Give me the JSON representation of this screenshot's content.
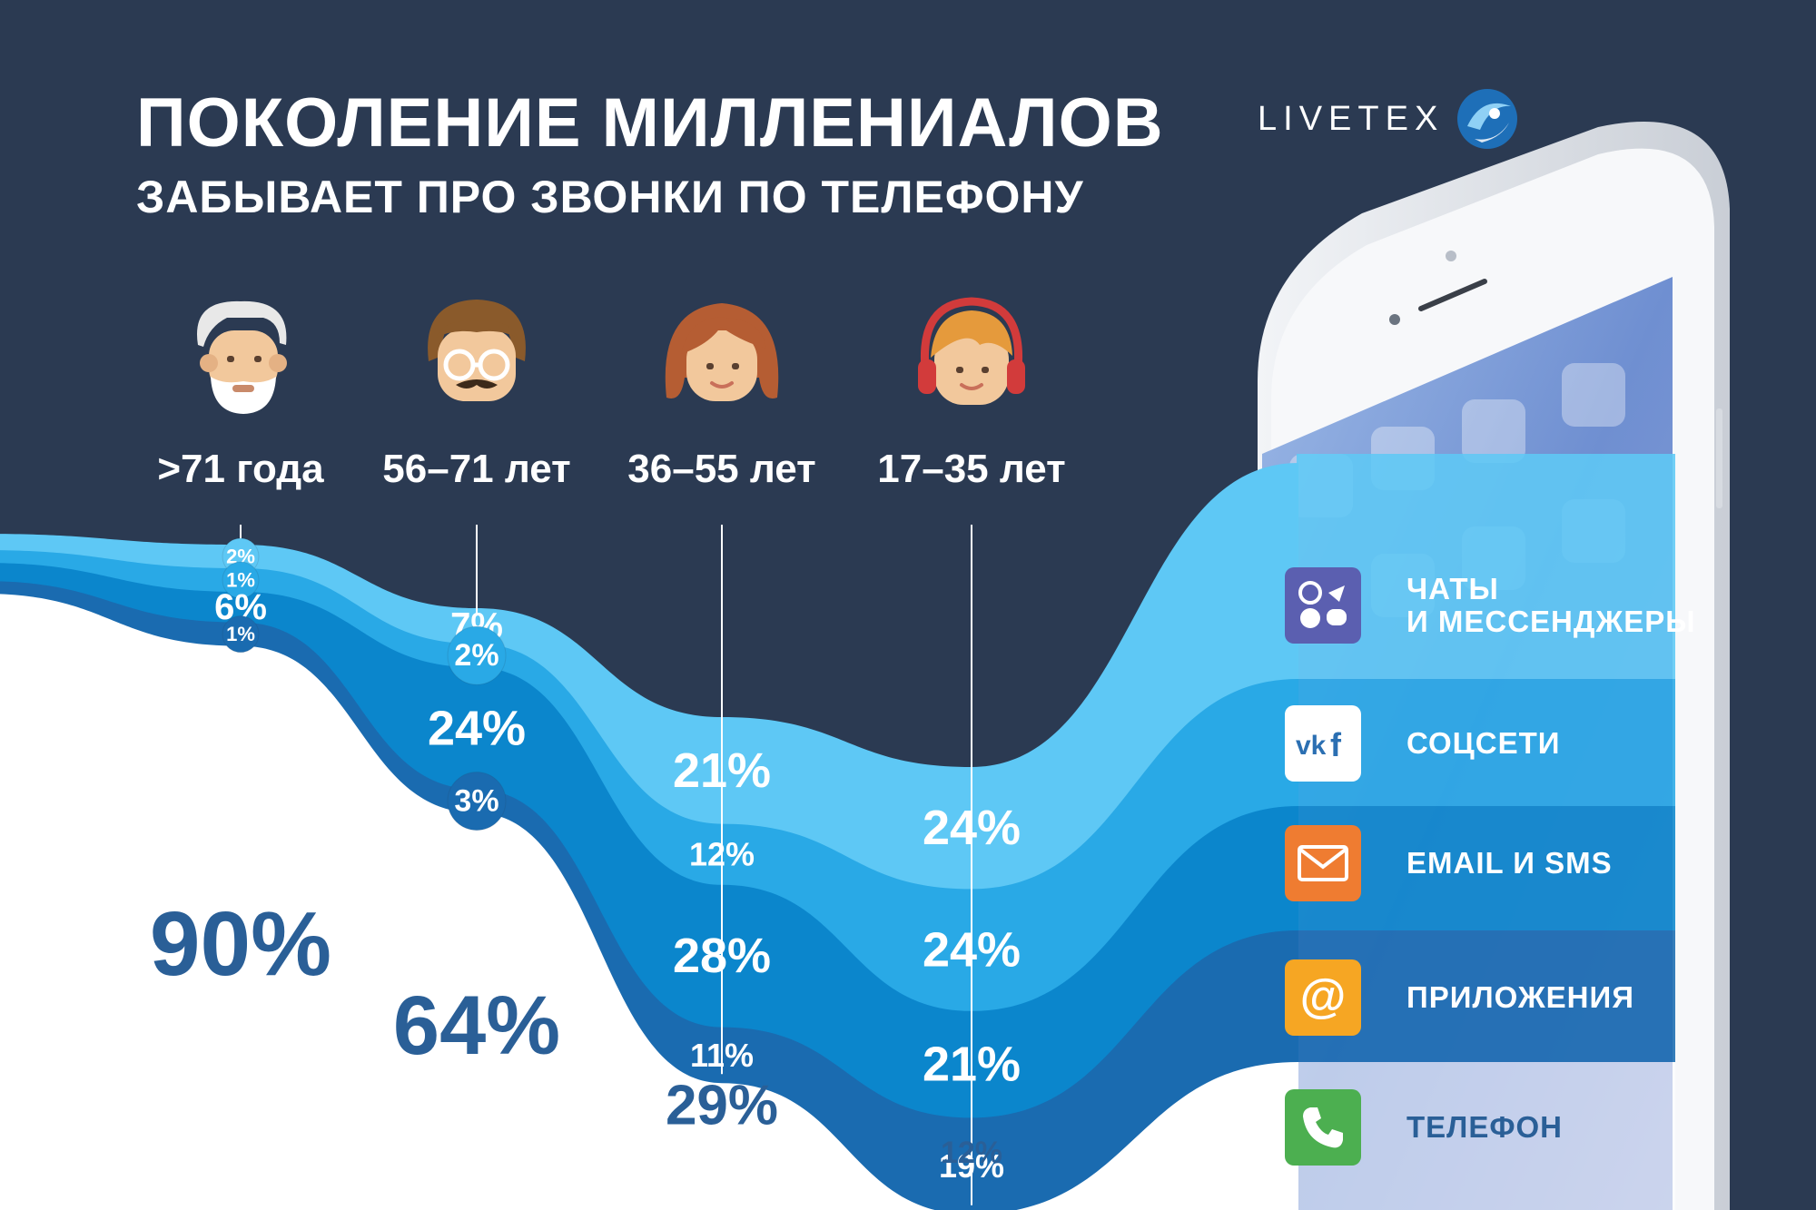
{
  "header": {
    "title": "ПОКОЛЕНИЕ МИЛЛЕНИАЛОВ",
    "subtitle": "ЗАБЫВАЕТ ПРО ЗВОНКИ ПО ТЕЛЕФОНУ"
  },
  "logo": {
    "text": "LIVETEX"
  },
  "age_groups": [
    {
      "label": ">71 года",
      "avatar": "elderly-man-avatar"
    },
    {
      "label": "56–71 лет",
      "avatar": "middle-aged-man-with-glasses-avatar"
    },
    {
      "label": "36–55 лет",
      "avatar": "woman-avatar"
    },
    {
      "label": "17–35 лет",
      "avatar": "young-person-with-headphones-avatar"
    }
  ],
  "legend": [
    {
      "line1": "ЧАТЫ",
      "line2": "И МЕССЕНДЖЕРЫ",
      "icon": "messengers-icon"
    },
    {
      "line1": "СОЦСЕТИ",
      "line2": "",
      "icon": "vk-facebook-icon"
    },
    {
      "line1": "EMAIL И SMS",
      "line2": "",
      "icon": "envelope-icon"
    },
    {
      "line1": "ПРИЛОЖЕНИЯ",
      "line2": "",
      "icon": "at-sign-icon"
    },
    {
      "line1": "ТЕЛЕФОН",
      "line2": "",
      "icon": "phone-handset-icon"
    }
  ],
  "chart_data": {
    "type": "area",
    "categories": [
      ">71 года",
      "56–71 лет",
      "36–55 лет",
      "17–35 лет"
    ],
    "series": [
      {
        "name": "ЧАТЫ И МЕССЕНДЖЕРЫ",
        "values": [
          2,
          7,
          21,
          24
        ],
        "labels": [
          "2%",
          "7%",
          "21%",
          "24%"
        ],
        "color": "#5ec8f5"
      },
      {
        "name": "СОЦСЕТИ",
        "values": [
          1,
          2,
          12,
          24
        ],
        "labels": [
          "1%",
          "2%",
          "12%",
          "24%"
        ],
        "color": "#29a9e6"
      },
      {
        "name": "EMAIL И SMS",
        "values": [
          6,
          24,
          28,
          21
        ],
        "labels": [
          "6%",
          "24%",
          "28%",
          "21%"
        ],
        "color": "#0b86cc"
      },
      {
        "name": "ПРИЛОЖЕНИЯ",
        "values": [
          1,
          3,
          11,
          19
        ],
        "labels": [
          "1%",
          "3%",
          "11%",
          "19%"
        ],
        "color": "#1a6bb0"
      },
      {
        "name": "ТЕЛЕФОН",
        "values": [
          90,
          64,
          29,
          12
        ],
        "labels": [
          "90%",
          "64%",
          "29%",
          "12%"
        ],
        "color": "#ffffff"
      }
    ]
  },
  "colors": {
    "background": "#2b3a52",
    "text_dark": "#2a5f97",
    "messengers_icon": "#5b5fb0",
    "social_icon": "#ffffff",
    "email_icon": "#ef7c31",
    "apps_icon": "#f6a623",
    "phone_icon": "#4caf50"
  }
}
